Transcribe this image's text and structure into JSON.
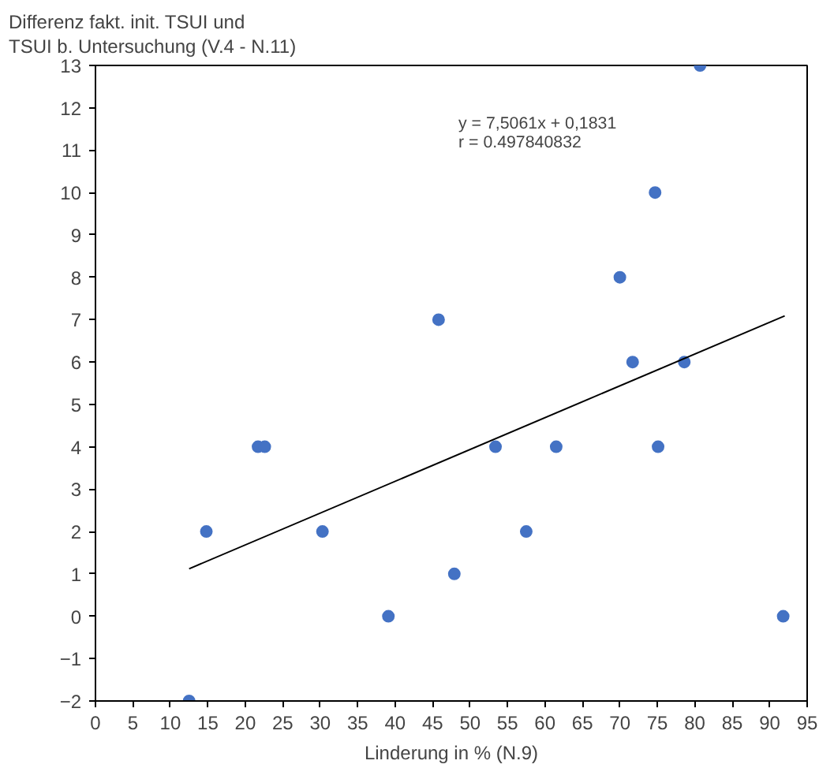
{
  "chart_data": {
    "type": "scatter",
    "ylabel": "Differenz fakt. init. TSUI und\nTSUI b. Untersuchung (V.4 - N.11)",
    "xlabel": "Linderung in % (N.9)",
    "annotations": [
      "y = 7,5061x + 0,1831",
      "r = 0.497840832"
    ],
    "series": [
      {
        "color": "#4472c4",
        "marker": "circle",
        "x": [
          12.5,
          14.8,
          21.7,
          22.6,
          30.3,
          39.1,
          45.8,
          47.9,
          53.4,
          57.5,
          61.5,
          70.0,
          71.7,
          74.7,
          75.1,
          78.6,
          80.7,
          91.8
        ],
        "values": [
          -2,
          2,
          4,
          4,
          2,
          0,
          7,
          1,
          4,
          2,
          4,
          8,
          6,
          10,
          4,
          6,
          13,
          0
        ]
      },
      {
        "type": "line",
        "color": "#000000",
        "marker": "none",
        "x": [
          12.5,
          92.0
        ],
        "values": [
          1.12,
          7.09
        ]
      }
    ],
    "xlim": [
      0,
      95
    ],
    "xticks": [
      0,
      5,
      10,
      15,
      20,
      25,
      30,
      35,
      40,
      45,
      50,
      55,
      60,
      65,
      70,
      75,
      80,
      85,
      90,
      95
    ],
    "ylim": [
      -2,
      13
    ],
    "yticks": [
      -2,
      -1,
      0,
      1,
      2,
      3,
      4,
      5,
      6,
      7,
      8,
      9,
      10,
      11,
      12,
      13
    ],
    "grid": false
  }
}
